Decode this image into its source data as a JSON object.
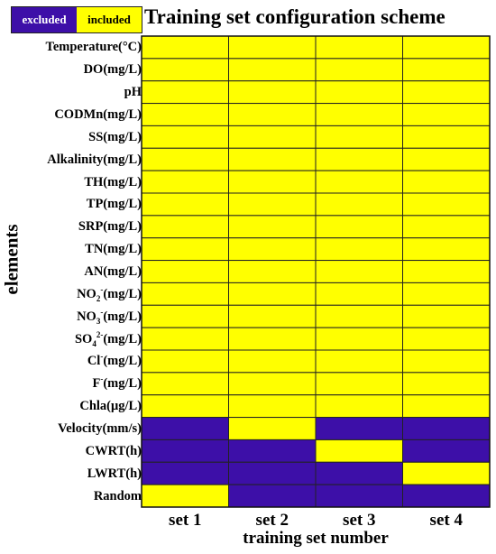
{
  "chart_data": {
    "type": "heatmap",
    "title": "Training set configuration scheme",
    "xlabel": "training set number",
    "ylabel": "elements",
    "legend": [
      {
        "label": "excluded",
        "value": 0,
        "color": "#3d0fa8"
      },
      {
        "label": "included",
        "value": 1,
        "color": "#ffff00"
      }
    ],
    "legend_position": "top-left",
    "x_categories": [
      "set 1",
      "set 2",
      "set 3",
      "set 4"
    ],
    "y_categories": [
      {
        "base": "Temperature(°C)"
      },
      {
        "base": "DO(mg/L)"
      },
      {
        "base": "pH"
      },
      {
        "base": "CODMn(mg/L)"
      },
      {
        "base": "SS(mg/L)"
      },
      {
        "base": "Alkalinity(mg/L)"
      },
      {
        "base": "TH(mg/L)"
      },
      {
        "base": "TP(mg/L)"
      },
      {
        "base": "SRP(mg/L)"
      },
      {
        "base": "TN(mg/L)"
      },
      {
        "base": "AN(mg/L)"
      },
      {
        "base": "NO",
        "sub": "2",
        "sup": "-",
        "rest": "(mg/L)"
      },
      {
        "base": "NO",
        "sub": "3",
        "sup": "-",
        "rest": "(mg/L)"
      },
      {
        "base": "SO",
        "sub": "4",
        "sup": "2-",
        "rest": "(mg/L)"
      },
      {
        "base": "Cl",
        "sup": "-",
        "rest": "(mg/L)"
      },
      {
        "base": "F",
        "sup": "-",
        "rest": "(mg/L)"
      },
      {
        "base": "Chla(μg/L)"
      },
      {
        "base": "Velocity(mm/s)"
      },
      {
        "base": "CWRT(h)"
      },
      {
        "base": "LWRT(h)"
      },
      {
        "base": "Random"
      }
    ],
    "values": [
      [
        1,
        1,
        1,
        1
      ],
      [
        1,
        1,
        1,
        1
      ],
      [
        1,
        1,
        1,
        1
      ],
      [
        1,
        1,
        1,
        1
      ],
      [
        1,
        1,
        1,
        1
      ],
      [
        1,
        1,
        1,
        1
      ],
      [
        1,
        1,
        1,
        1
      ],
      [
        1,
        1,
        1,
        1
      ],
      [
        1,
        1,
        1,
        1
      ],
      [
        1,
        1,
        1,
        1
      ],
      [
        1,
        1,
        1,
        1
      ],
      [
        1,
        1,
        1,
        1
      ],
      [
        1,
        1,
        1,
        1
      ],
      [
        1,
        1,
        1,
        1
      ],
      [
        1,
        1,
        1,
        1
      ],
      [
        1,
        1,
        1,
        1
      ],
      [
        1,
        1,
        1,
        1
      ],
      [
        0,
        1,
        0,
        0
      ],
      [
        0,
        0,
        1,
        0
      ],
      [
        0,
        0,
        0,
        1
      ],
      [
        1,
        0,
        0,
        0
      ]
    ]
  }
}
